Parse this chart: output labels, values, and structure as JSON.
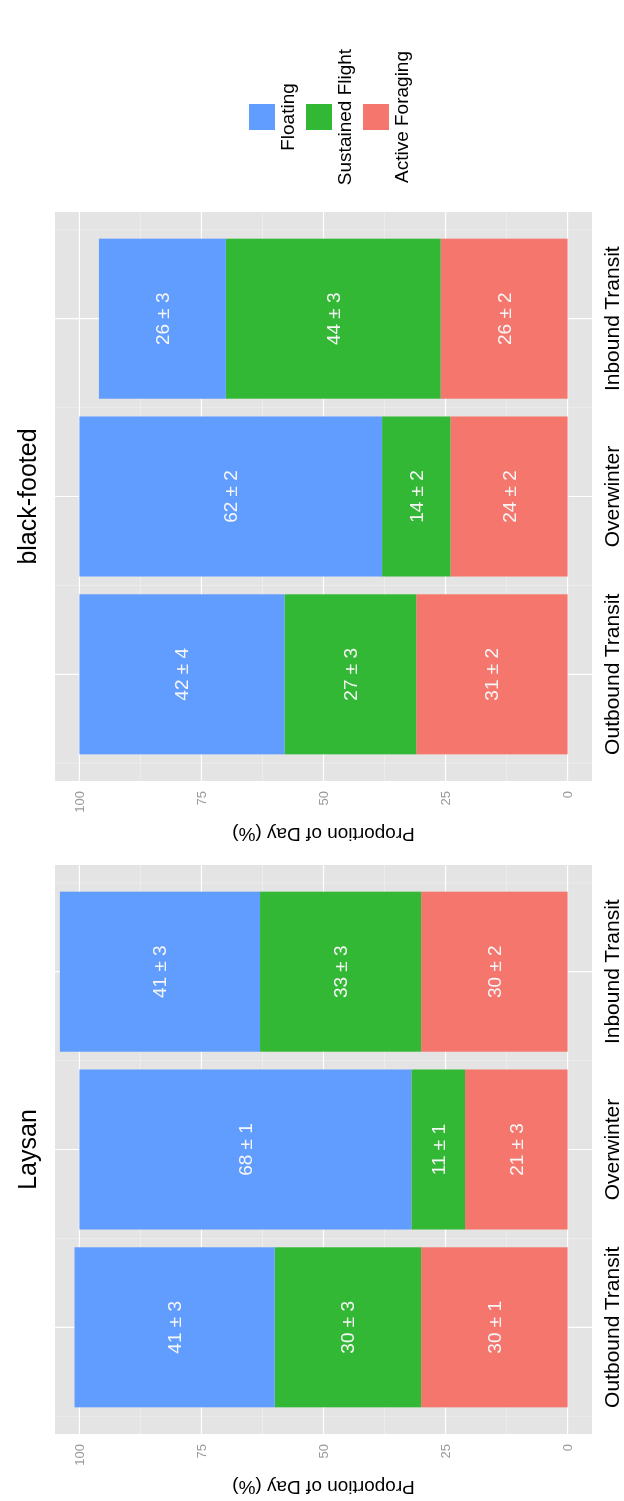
{
  "chart_data": [
    {
      "type": "bar",
      "title": "black-footed",
      "xlabel": "Proportion of Day (%)",
      "orientation": "horizontal",
      "stacked": true,
      "categories": [
        "Inbound Transit",
        "Overwinter",
        "Outbound Transit"
      ],
      "series": [
        {
          "name": "Active Foraging",
          "color": "#f5766d",
          "values": [
            26,
            24,
            31
          ],
          "value_labels": [
            "26 ± 2",
            "24 ± 2",
            "31 ± 2"
          ]
        },
        {
          "name": "Sustained Flight",
          "color": "#33b835",
          "values": [
            44,
            14,
            27
          ],
          "value_labels": [
            "44 ± 3",
            "14 ± 2",
            "27 ± 3"
          ]
        },
        {
          "name": "Floating",
          "color": "#619cff",
          "values": [
            26,
            62,
            42
          ],
          "value_labels": [
            "26 ± 3",
            "62 ± 2",
            "42 ± 4"
          ]
        }
      ],
      "xlim": [
        105,
        -5
      ],
      "xticks": [
        100,
        75,
        50,
        25,
        0
      ],
      "grid": true,
      "legend": "top"
    },
    {
      "type": "bar",
      "title": "Laysan",
      "xlabel": "Proportion of Day (%)",
      "orientation": "horizontal",
      "stacked": true,
      "categories": [
        "Inbound Transit",
        "Overwinter",
        "Outbound Transit"
      ],
      "series": [
        {
          "color": "#f5766d",
          "values": [
            30,
            21,
            30
          ],
          "value_labels": [
            "30 ± 2",
            "21 ± 3",
            "30 ± 1"
          ]
        },
        {
          "color": "#33b835",
          "values": [
            33,
            11,
            30
          ],
          "value_labels": [
            "33 ± 3",
            "11 ± 1",
            "30 ± 3"
          ]
        },
        {
          "color": "#619cff",
          "values": [
            41,
            68,
            41
          ],
          "value_labels": [
            "41 ± 3",
            "68 ± 1",
            "41 ± 3"
          ]
        }
      ],
      "xlim": [
        105,
        -5
      ],
      "xticks": [
        100,
        75,
        50,
        25,
        0
      ],
      "grid": true
    }
  ]
}
